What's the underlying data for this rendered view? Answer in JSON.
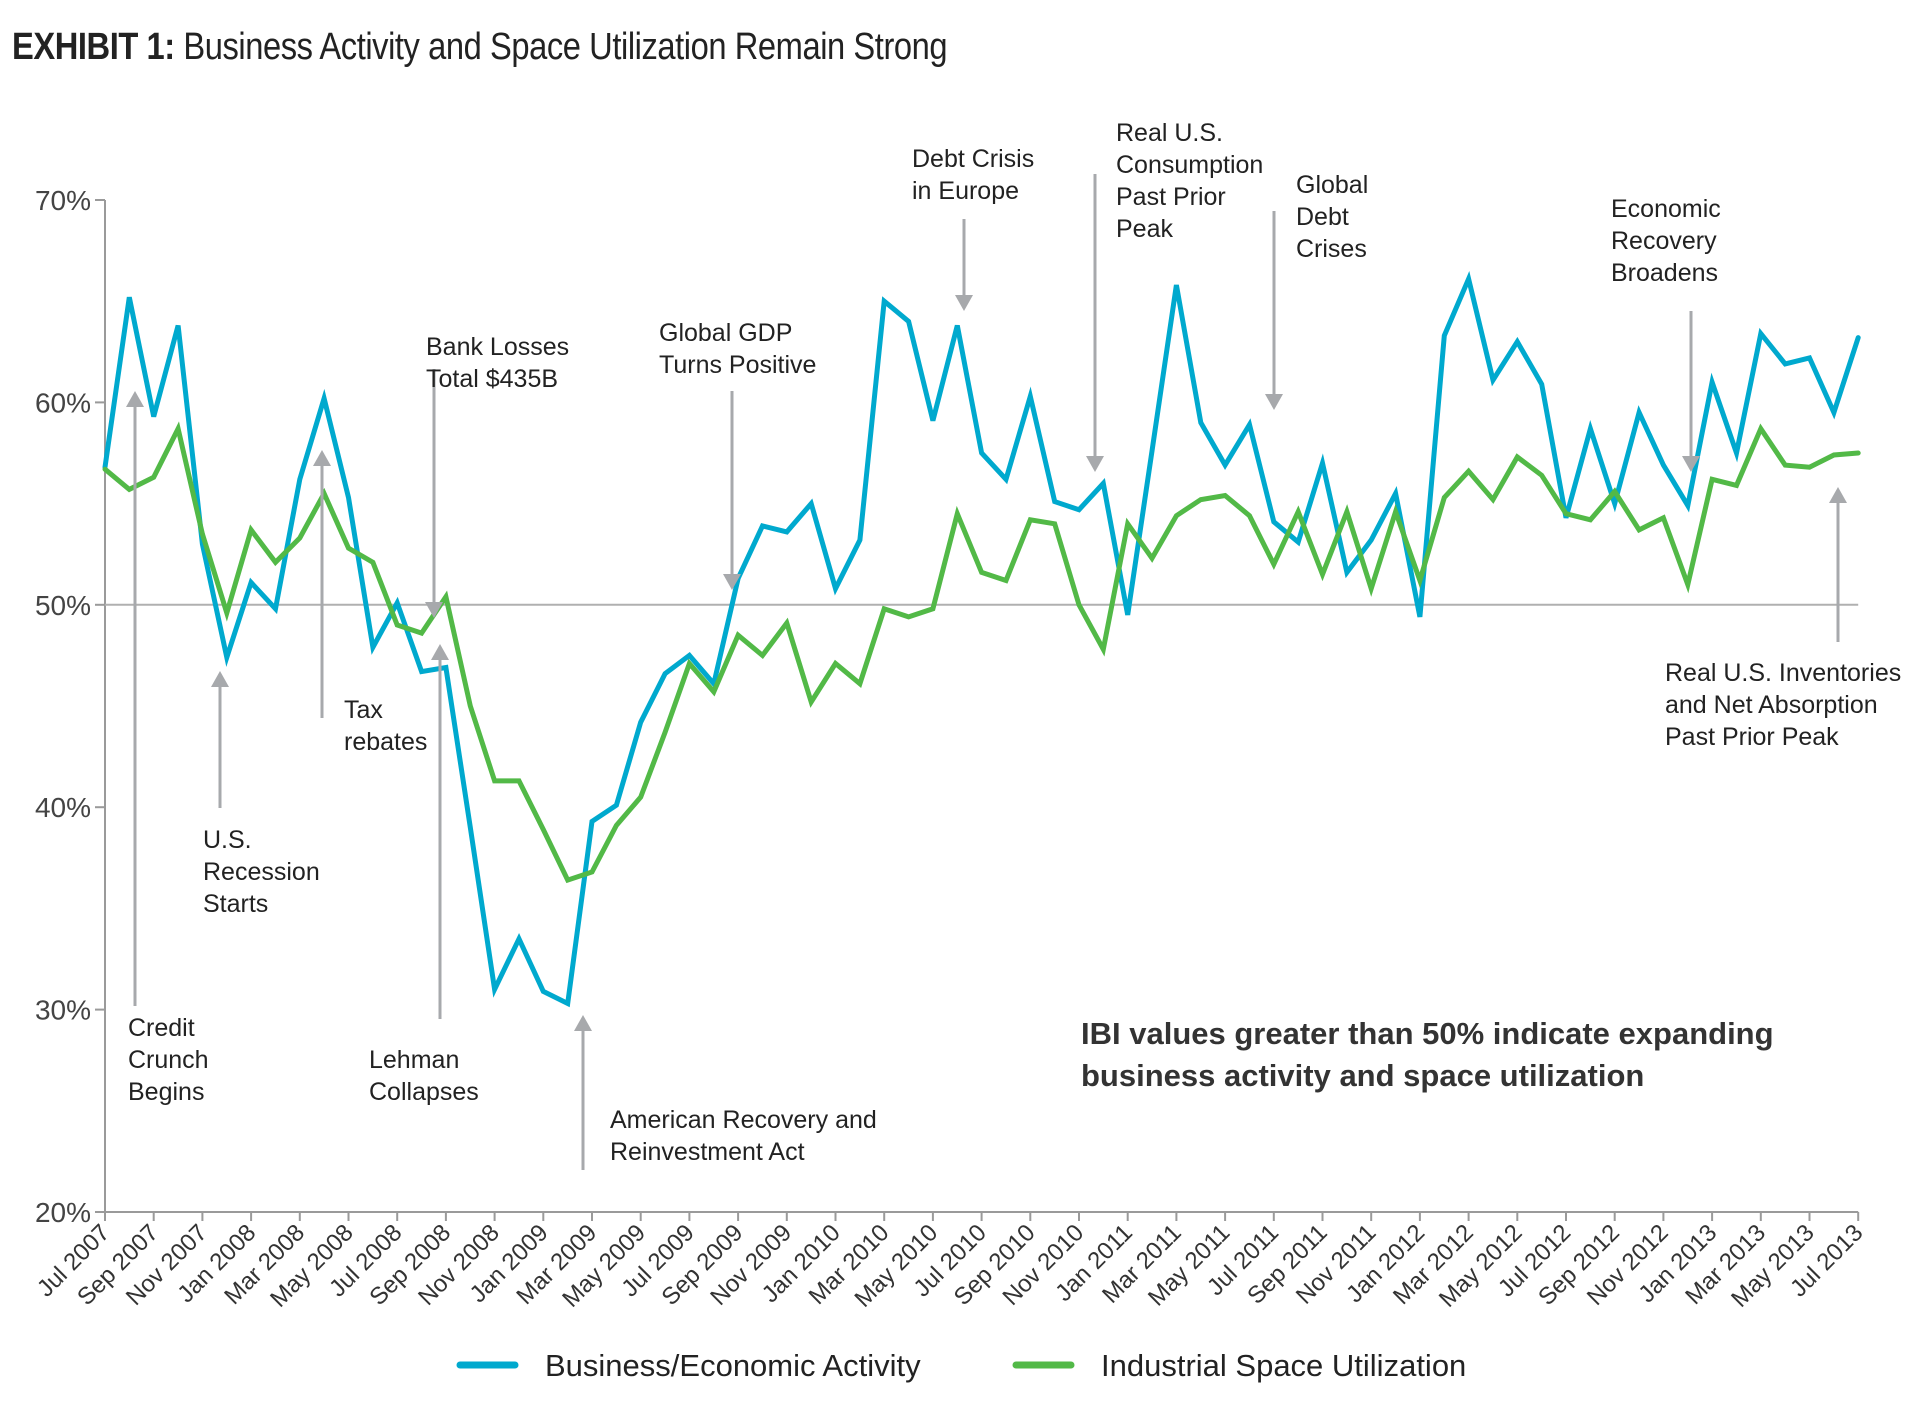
{
  "title": {
    "prefix": "EXHIBIT 1:",
    "text": " Business Activity and Space Utilization Remain Strong"
  },
  "note": [
    "IBI values greater than 50% indicate expanding",
    "business activity and space utilization"
  ],
  "colors": {
    "business": "#00A9CE",
    "industrial": "#52B947",
    "axis": "#9a9a9a",
    "arrow": "#a7a9ac",
    "reference_line": "#b0b0b0"
  },
  "annotations": [
    {
      "id": "credit-crunch",
      "lines": [
        "Credit",
        "Crunch",
        "Begins"
      ],
      "month": "Sep 2007",
      "direction": "up"
    },
    {
      "id": "us-recession",
      "lines": [
        "U.S.",
        "Recession",
        "Starts"
      ],
      "month": "Dec 2007",
      "direction": "up"
    },
    {
      "id": "tax-rebates",
      "lines": [
        "Tax",
        "rebates"
      ],
      "month": "Apr 2008",
      "direction": "up"
    },
    {
      "id": "bank-losses",
      "lines": [
        "Bank Losses",
        "Total $435B"
      ],
      "month": "Aug 2008",
      "direction": "down"
    },
    {
      "id": "lehman",
      "lines": [
        "Lehman",
        "Collapses"
      ],
      "month": "Sep 2008",
      "direction": "up"
    },
    {
      "id": "arra",
      "lines": [
        "American Recovery and",
        "Reinvestment Act"
      ],
      "month": "Feb 2009",
      "direction": "up"
    },
    {
      "id": "global-gdp",
      "lines": [
        "Global GDP",
        "Turns Positive"
      ],
      "month": "Aug 2009",
      "direction": "down"
    },
    {
      "id": "debt-crisis-europe",
      "lines": [
        "Debt Crisis",
        "in Europe"
      ],
      "month": "Jun 2010",
      "direction": "down"
    },
    {
      "id": "consumption-peak",
      "lines": [
        "Real U.S.",
        "Consumption",
        "Past Prior",
        "Peak"
      ],
      "month": "Nov 2010",
      "direction": "down"
    },
    {
      "id": "global-debt-crises",
      "lines": [
        "Global",
        "Debt",
        "Crises"
      ],
      "month": "Jul 2011",
      "direction": "down"
    },
    {
      "id": "recovery-broadens",
      "lines": [
        "Economic",
        "Recovery",
        "Broadens"
      ],
      "month": "Dec 2012",
      "direction": "down"
    },
    {
      "id": "inventories-peak",
      "lines": [
        "Real U.S. Inventories",
        "and Net Absorption",
        "Past Prior Peak"
      ],
      "month": "Jun 2013",
      "direction": "up"
    }
  ],
  "chart_data": {
    "type": "line",
    "title": "EXHIBIT 1: Business Activity and Space Utilization Remain Strong",
    "xlabel": "",
    "ylabel": "",
    "ylim": [
      20,
      70
    ],
    "y_ticks": [
      "20%",
      "30%",
      "40%",
      "50%",
      "60%",
      "70%"
    ],
    "y_tick_values": [
      20,
      30,
      40,
      50,
      60,
      70
    ],
    "reference_line": 50,
    "grid": false,
    "legend_position": "bottom",
    "x_tick_labels": [
      "Jul 2007",
      "Sep 2007",
      "Nov 2007",
      "Jan 2008",
      "Mar 2008",
      "May 2008",
      "Jul 2008",
      "Sep 2008",
      "Nov 2008",
      "Jan 2009",
      "Mar 2009",
      "May 2009",
      "Jul 2009",
      "Sep 2009",
      "Nov 2009",
      "Jan 2010",
      "Mar 2010",
      "May 2010",
      "Jul 2010",
      "Sep 2010",
      "Nov 2010",
      "Jan 2011",
      "Mar 2011",
      "May 2011",
      "Jul 2011",
      "Sep 2011",
      "Nov 2011",
      "Jan 2012",
      "Mar 2012",
      "May 2012",
      "Jul 2012",
      "Sep 2012",
      "Nov 2012",
      "Jan 2013",
      "Mar 2013",
      "May 2013",
      "Jul 2013"
    ],
    "x": [
      "Jul 2007",
      "Aug 2007",
      "Sep 2007",
      "Oct 2007",
      "Nov 2007",
      "Dec 2007",
      "Jan 2008",
      "Feb 2008",
      "Mar 2008",
      "Apr 2008",
      "May 2008",
      "Jun 2008",
      "Jul 2008",
      "Aug 2008",
      "Sep 2008",
      "Oct 2008",
      "Nov 2008",
      "Dec 2008",
      "Jan 2009",
      "Feb 2009",
      "Mar 2009",
      "Apr 2009",
      "May 2009",
      "Jun 2009",
      "Jul 2009",
      "Aug 2009",
      "Sep 2009",
      "Oct 2009",
      "Nov 2009",
      "Dec 2009",
      "Jan 2010",
      "Feb 2010",
      "Mar 2010",
      "Apr 2010",
      "May 2010",
      "Jun 2010",
      "Jul 2010",
      "Aug 2010",
      "Sep 2010",
      "Oct 2010",
      "Nov 2010",
      "Dec 2010",
      "Jan 2011",
      "Feb 2011",
      "Mar 2011",
      "Apr 2011",
      "May 2011",
      "Jun 2011",
      "Jul 2011",
      "Aug 2011",
      "Sep 2011",
      "Oct 2011",
      "Nov 2011",
      "Dec 2011",
      "Jan 2012",
      "Feb 2012",
      "Mar 2012",
      "Apr 2012",
      "May 2012",
      "Jun 2012",
      "Jul 2012",
      "Aug 2012",
      "Sep 2012",
      "Oct 2012",
      "Nov 2012",
      "Dec 2012",
      "Jan 2013",
      "Feb 2013",
      "Mar 2013",
      "Apr 2013",
      "May 2013",
      "Jun 2013",
      "Jul 2013"
    ],
    "series": [
      {
        "name": "Business/Economic Activity",
        "color": "#00A9CE",
        "values": [
          56.8,
          65.2,
          59.3,
          63.8,
          53.0,
          47.4,
          51.1,
          49.8,
          56.2,
          60.2,
          55.3,
          47.9,
          50.1,
          46.7,
          46.9,
          39.0,
          31.0,
          33.5,
          30.9,
          30.3,
          39.3,
          40.1,
          44.2,
          46.6,
          47.5,
          46.1,
          51.3,
          53.9,
          53.6,
          55.0,
          50.8,
          53.2,
          65.0,
          64.0,
          59.1,
          63.8,
          57.5,
          56.2,
          60.3,
          55.1,
          54.7,
          56.0,
          49.5,
          57.6,
          65.8,
          59.0,
          56.9,
          58.9,
          54.1,
          53.1,
          57.0,
          51.6,
          53.2,
          55.5,
          49.4,
          63.3,
          66.1,
          61.1,
          63.0,
          60.9,
          54.3,
          58.7,
          55.0,
          59.5,
          56.9,
          54.9,
          61.0,
          57.5,
          63.4,
          61.9,
          62.2,
          59.5,
          63.2
        ]
      },
      {
        "name": "Industrial Space Utilization",
        "color": "#52B947",
        "values": [
          56.7,
          55.7,
          56.3,
          58.7,
          53.5,
          49.6,
          53.7,
          52.1,
          53.3,
          55.5,
          52.8,
          52.1,
          49.0,
          48.6,
          50.4,
          45.0,
          41.3,
          41.3,
          38.9,
          36.4,
          36.8,
          39.1,
          40.5,
          43.7,
          47.1,
          45.7,
          48.5,
          47.5,
          49.1,
          45.2,
          47.1,
          46.1,
          49.8,
          49.4,
          49.8,
          54.5,
          51.6,
          51.2,
          54.2,
          54.0,
          50.0,
          47.8,
          54.0,
          52.3,
          54.4,
          55.2,
          55.4,
          54.4,
          52.0,
          54.6,
          51.5,
          54.6,
          50.8,
          54.6,
          51.2,
          55.3,
          56.6,
          55.2,
          57.3,
          56.4,
          54.5,
          54.2,
          55.6,
          53.7,
          54.3,
          51.0,
          56.2,
          55.9,
          58.7,
          56.9,
          56.8,
          57.4,
          57.5
        ]
      }
    ]
  }
}
